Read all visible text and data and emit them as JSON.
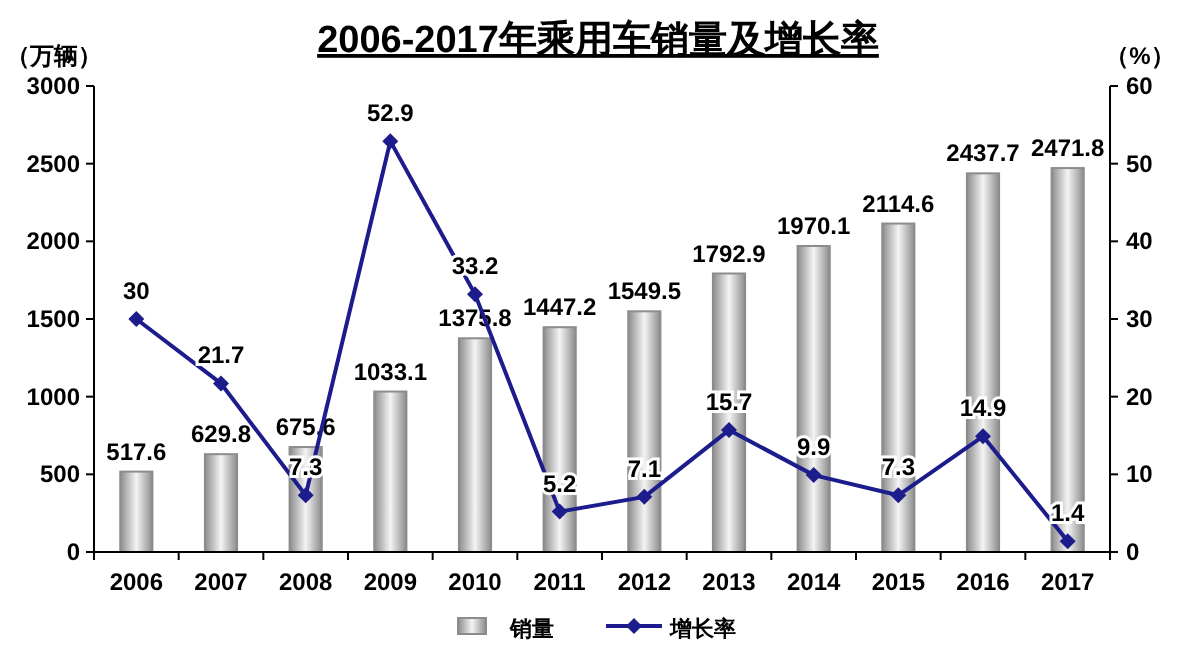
{
  "chart_data": {
    "type": "bar",
    "title": "2006-2017年乘用车销量及增长率",
    "ylabel": "（万辆）",
    "y2label": "（%）",
    "categories": [
      "2006",
      "2007",
      "2008",
      "2009",
      "2010",
      "2011",
      "2012",
      "2013",
      "2014",
      "2015",
      "2016",
      "2017"
    ],
    "series": [
      {
        "name": "销量",
        "color": "#8c8c8c",
        "values": [
          517.6,
          629.8,
          675.6,
          1033.1,
          1375.8,
          1447.2,
          1549.5,
          1792.9,
          1970.1,
          2114.6,
          2437.7,
          2471.8
        ]
      },
      {
        "name": "增长率",
        "type": "line",
        "axis": "y2",
        "color": "#1c1c8c",
        "marker": "diamond",
        "values": [
          30,
          21.7,
          7.3,
          52.9,
          33.2,
          5.2,
          7.1,
          15.7,
          9.9,
          7.3,
          14.9,
          1.4
        ]
      }
    ],
    "ylim": [
      0,
      3000
    ],
    "yticks": [
      0,
      500,
      1000,
      1500,
      2000,
      2500,
      3000
    ],
    "y2lim": [
      0,
      60
    ],
    "y2ticks": [
      0,
      10,
      20,
      30,
      40,
      50,
      60
    ],
    "data_labels": true,
    "grid": false,
    "legend": "bottom"
  }
}
